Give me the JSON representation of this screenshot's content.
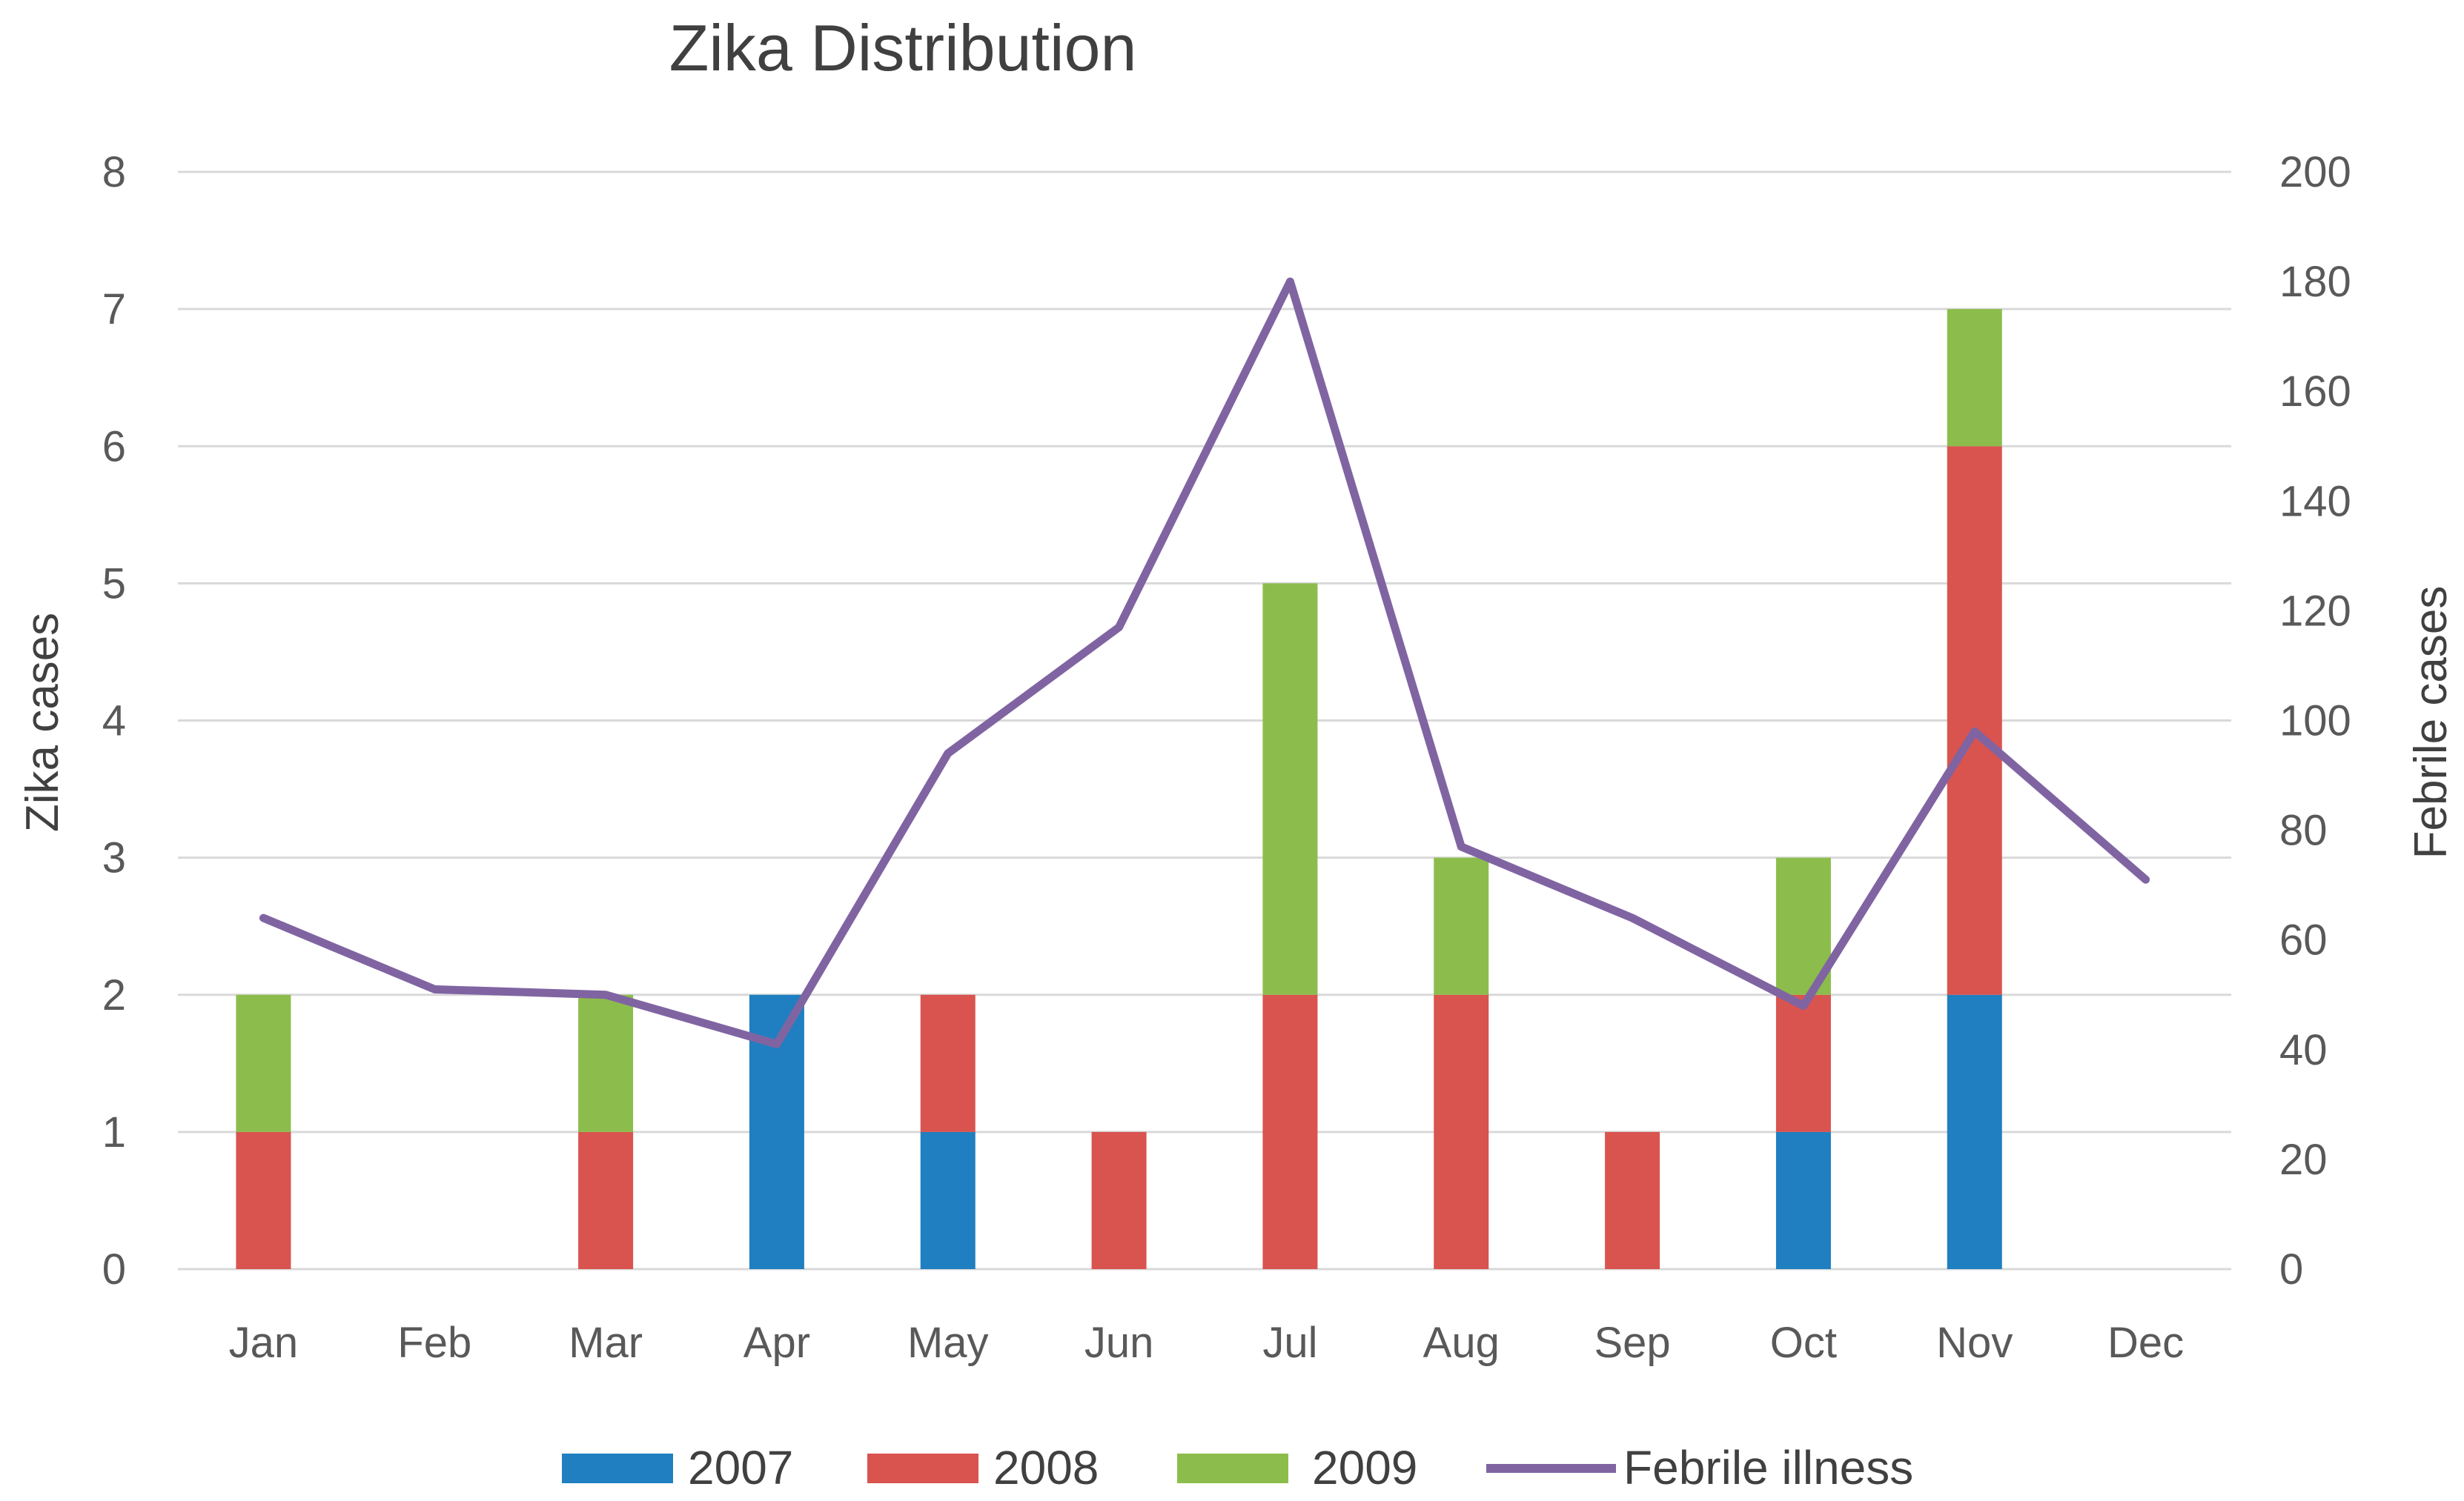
{
  "chart_data": {
    "type": "bar",
    "stacked": true,
    "title": "Zika Distribution",
    "categories": [
      "Jan",
      "Feb",
      "Mar",
      "Apr",
      "May",
      "Jun",
      "Jul",
      "Aug",
      "Sep",
      "Oct",
      "Nov",
      "Dec"
    ],
    "series": [
      {
        "name": "2007",
        "color": "#1f7fc0",
        "values": [
          0,
          0,
          0,
          2,
          1,
          0,
          0,
          0,
          0,
          1,
          2,
          0
        ]
      },
      {
        "name": "2008",
        "color": "#d9534f",
        "values": [
          1,
          0,
          1,
          0,
          1,
          1,
          2,
          2,
          1,
          1,
          4,
          0
        ]
      },
      {
        "name": "2009",
        "color": "#8cbd4c",
        "values": [
          1,
          0,
          1,
          0,
          0,
          0,
          3,
          1,
          0,
          1,
          1,
          0
        ]
      }
    ],
    "line_series": {
      "name": "Febrile illness",
      "color": "#8064a2",
      "axis": "right",
      "values": [
        64,
        51,
        50,
        41,
        94,
        117,
        180,
        77,
        64,
        48,
        98,
        71
      ]
    },
    "ylabel": "Zika cases",
    "ylim": [
      0,
      8
    ],
    "yticks": [
      "0",
      "1",
      "2",
      "3",
      "4",
      "5",
      "6",
      "7",
      "8"
    ],
    "y2label": "Febrile cases",
    "y2lim": [
      0,
      200
    ],
    "y2ticks": [
      "0",
      "20",
      "40",
      "60",
      "80",
      "100",
      "120",
      "140",
      "160",
      "180",
      "200"
    ],
    "grid": true,
    "legend": "bottom"
  }
}
